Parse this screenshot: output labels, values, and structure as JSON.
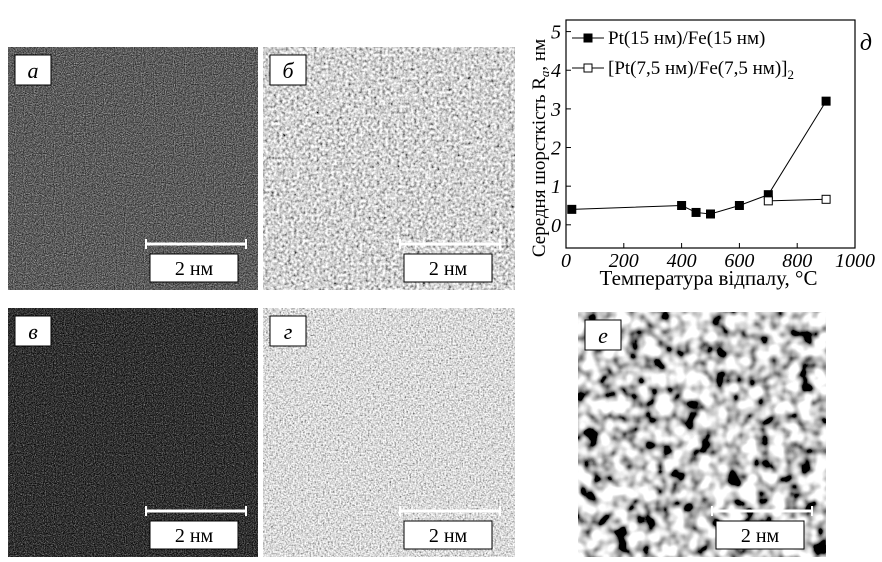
{
  "panels": [
    {
      "label": "а",
      "scale": "2 нм"
    },
    {
      "label": "б",
      "scale": "2 нм"
    },
    {
      "label": "в",
      "scale": "2 нм"
    },
    {
      "label": "г",
      "scale": "2 нм"
    },
    {
      "label": "е",
      "scale": "2 нм"
    }
  ],
  "chart_data": {
    "type": "line",
    "panel_label": "д",
    "x_label": "Температура відпалу, °C",
    "y_label": {
      "text": "Середня шорсткість R",
      "sub": "a",
      "unit": ", нм"
    },
    "xlim": [
      0,
      1000
    ],
    "xticks": [
      0,
      200,
      400,
      600,
      800,
      1000
    ],
    "ylim": [
      -0.6,
      5.3
    ],
    "yticks": [
      0,
      1,
      2,
      3,
      4,
      5
    ],
    "series": [
      {
        "name": "Pt(15 нм)/Fe(15 нм)",
        "marker": "filled",
        "color": "#000000",
        "x": [
          20,
          400,
          450,
          500,
          600,
          700,
          900
        ],
        "values": [
          0.4,
          0.5,
          0.32,
          0.28,
          0.5,
          0.78,
          3.2
        ]
      },
      {
        "name": "[Pt(7,5 нм)/Fe(7,5 нм)]",
        "name_sub": "2",
        "marker": "open",
        "color": "#000000",
        "x": [
          700,
          900
        ],
        "values": [
          0.62,
          0.66
        ]
      }
    ]
  }
}
